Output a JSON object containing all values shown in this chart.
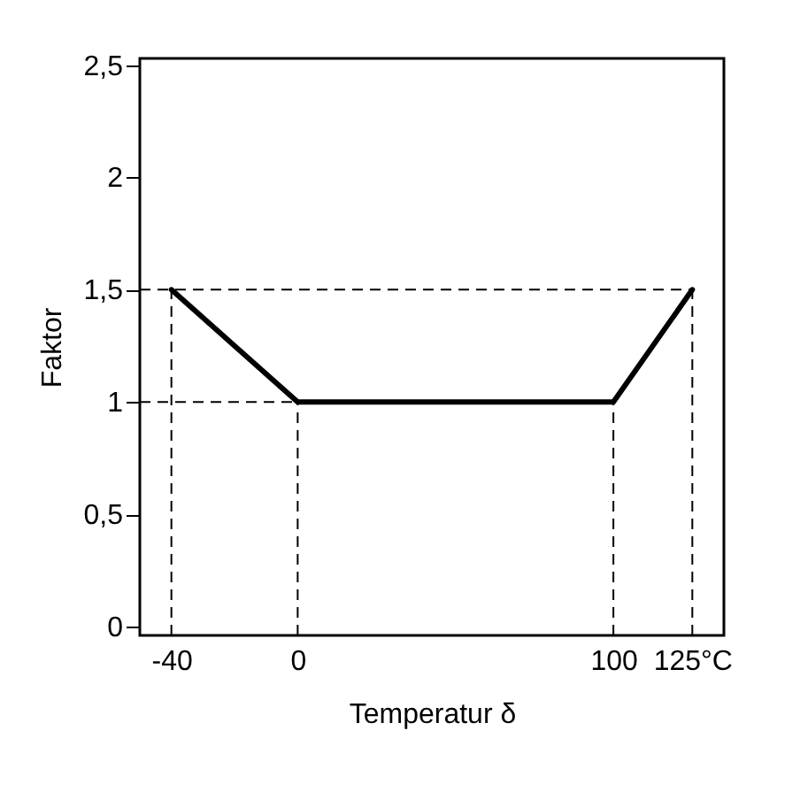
{
  "chart_data": {
    "type": "line",
    "xlabel": "Temperatur δ",
    "ylabel": "Faktor",
    "x": [
      -40,
      0,
      100,
      125
    ],
    "series": [
      {
        "color": "#000000",
        "values": [
          1.5,
          1,
          1,
          1.5
        ]
      }
    ],
    "xlim": [
      -50,
      135
    ],
    "xticks": [
      -40,
      0,
      100,
      {
        "value": 125,
        "label": "125°C"
      }
    ],
    "ylim": [
      -0.04,
      2.53
    ],
    "yticks": [
      0,
      {
        "value": 0.5,
        "label": "0,5"
      },
      1,
      {
        "value": 1.5,
        "label": "1,5"
      },
      2,
      {
        "value": 2.5,
        "label": "2,5"
      }
    ],
    "ref_lines": [
      {
        "axis": "x",
        "value": -40,
        "line_style": "dashed"
      },
      {
        "axis": "x",
        "value": 0,
        "line_style": "dashed"
      },
      {
        "axis": "x",
        "value": 100,
        "line_style": "dashed"
      },
      {
        "axis": "x",
        "value": 125,
        "line_style": "dashed"
      },
      {
        "axis": "y",
        "value": 1,
        "line_style": "dashed"
      },
      {
        "axis": "y",
        "value": 1.5,
        "line_style": "dashed"
      }
    ],
    "grid": false,
    "marker": "none",
    "line_style": "solid"
  }
}
